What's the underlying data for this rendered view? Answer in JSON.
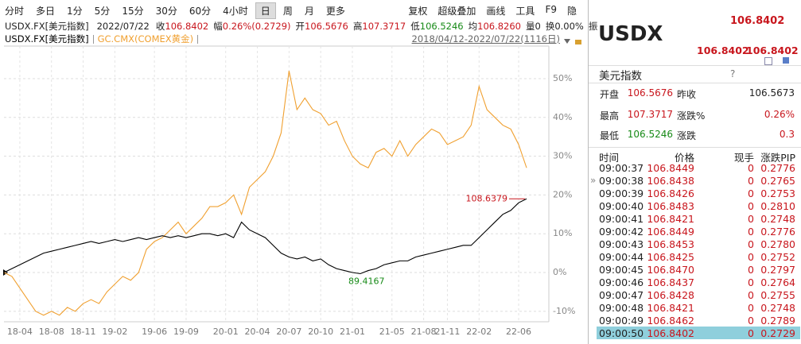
{
  "toolbar": {
    "left": [
      "分时",
      "多日",
      "1分",
      "5分",
      "15分",
      "30分",
      "60分",
      "4小时",
      "日",
      "周",
      "月",
      "更多"
    ],
    "active_index": 8,
    "right": [
      "复权",
      "超级叠加",
      "画线",
      "工具",
      "F9",
      "隐"
    ]
  },
  "quote_line": {
    "symbol": "USDX.FX[美元指数]",
    "date": "2022/07/22",
    "items": [
      {
        "label": "收",
        "value": "106.8402",
        "tone": "up"
      },
      {
        "label": "幅",
        "value": "0.26%(0.2729)",
        "tone": "up"
      },
      {
        "label": "开",
        "value": "106.5676",
        "tone": "up"
      },
      {
        "label": "高",
        "value": "107.3717",
        "tone": "up"
      },
      {
        "label": "低",
        "value": "106.5246",
        "tone": "down"
      },
      {
        "label": "均",
        "value": "106.8260",
        "tone": "up"
      },
      {
        "label": "量",
        "value": "0",
        "tone": "plain"
      },
      {
        "label": "换",
        "value": "0.00%",
        "tone": "plain"
      }
    ],
    "trailing": "振"
  },
  "chart_data": {
    "type": "line",
    "range": "2018/04/12-2022/07/22(1116日)",
    "categories": [
      null,
      null,
      "18-04",
      null,
      null,
      null,
      "18-08",
      null,
      null,
      null,
      "18-11",
      null,
      null,
      null,
      "19-02",
      null,
      null,
      null,
      null,
      "19-06",
      null,
      null,
      null,
      "19-09",
      null,
      null,
      null,
      null,
      "20-01",
      null,
      null,
      null,
      "20-04",
      null,
      null,
      null,
      "20-07",
      null,
      null,
      null,
      "20-10",
      null,
      null,
      null,
      "21-01",
      null,
      null,
      null,
      null,
      "21-05",
      null,
      null,
      null,
      "21-08",
      null,
      null,
      "21-11",
      null,
      null,
      null,
      "22-02",
      null,
      null,
      null,
      null,
      "22-06",
      null
    ],
    "series": [
      {
        "name": "USDX.FX[美元指数]",
        "color": "#000000",
        "values": [
          0,
          1,
          2,
          3,
          4,
          5,
          5.5,
          6,
          6.5,
          7,
          7.5,
          8,
          7.5,
          8,
          8.5,
          8,
          8.5,
          9,
          8.5,
          9,
          9.5,
          9,
          9.5,
          9,
          9.5,
          10,
          10,
          9.5,
          10,
          9,
          13,
          11,
          10,
          9,
          7,
          5,
          4,
          3.5,
          4,
          3,
          3.5,
          2,
          1,
          0.5,
          0,
          -0.3,
          0.5,
          1,
          2,
          2.5,
          3,
          3,
          4,
          4.5,
          5,
          5.5,
          6,
          6.5,
          7,
          7,
          9,
          11,
          13,
          15,
          16,
          18,
          19
        ]
      },
      {
        "name": "GC.CMX(COMEX黄金)",
        "color": "#f0a030",
        "values": [
          0,
          -1,
          -4,
          -7,
          -10,
          -11,
          -10,
          -11,
          -9,
          -10,
          -8,
          -7,
          -8,
          -5,
          -3,
          -1,
          -2,
          0,
          6,
          8,
          9,
          11,
          13,
          10,
          12,
          14,
          17,
          17,
          18,
          20,
          15,
          22,
          24,
          26,
          30,
          36,
          52,
          42,
          45,
          42,
          41,
          38,
          39,
          34,
          30,
          28,
          27,
          31,
          32,
          30,
          34,
          30,
          33,
          35,
          37,
          36,
          33,
          34,
          35,
          38,
          48,
          42,
          40,
          38,
          37,
          33,
          27
        ]
      }
    ],
    "ylim": [
      -12.7,
      58.4
    ],
    "yticks": [
      {
        "value": -10,
        "label": "-10%"
      },
      {
        "value": 0,
        "label": "0%"
      },
      {
        "value": 10,
        "label": "10%"
      },
      {
        "value": 20,
        "label": "20%"
      },
      {
        "value": 30,
        "label": "30%"
      },
      {
        "value": 40,
        "label": "40%"
      },
      {
        "value": 50,
        "label": "50%"
      }
    ],
    "grid": true,
    "max_label": "108.6379",
    "min_label": "89.4167"
  },
  "side_panel": {
    "code": "USDX",
    "price": "106.8402",
    "bid": "106.8402",
    "ask": "106.8402",
    "name": "美元指数",
    "help": "?",
    "stats": [
      [
        {
          "label": "开盘"
        },
        {
          "value": "106.5676",
          "tone": "up"
        },
        {
          "label": "昨收"
        },
        {
          "value": "106.5673",
          "tone": "plain"
        }
      ],
      [
        {
          "label": "最高"
        },
        {
          "value": "107.3717",
          "tone": "up"
        },
        {
          "label": "涨跌%"
        },
        {
          "value": "0.26%",
          "tone": "up"
        }
      ],
      [
        {
          "label": "最低"
        },
        {
          "value": "106.5246",
          "tone": "down"
        },
        {
          "label": "涨跌"
        },
        {
          "value": "0.3",
          "tone": "up"
        }
      ]
    ],
    "ticks": {
      "columns": [
        "时间",
        "价格",
        "现手",
        "涨跌PIP"
      ],
      "rows": [
        [
          "09:00:37",
          "106.8449",
          "0",
          "0.2776"
        ],
        [
          "09:00:38",
          "106.8438",
          "0",
          "0.2765"
        ],
        [
          "09:00:39",
          "106.8426",
          "0",
          "0.2753"
        ],
        [
          "09:00:40",
          "106.8483",
          "0",
          "0.2810"
        ],
        [
          "09:00:41",
          "106.8421",
          "0",
          "0.2748"
        ],
        [
          "09:00:42",
          "106.8449",
          "0",
          "0.2776"
        ],
        [
          "09:00:43",
          "106.8453",
          "0",
          "0.2780"
        ],
        [
          "09:00:44",
          "106.8425",
          "0",
          "0.2752"
        ],
        [
          "09:00:45",
          "106.8470",
          "0",
          "0.2797"
        ],
        [
          "09:00:46",
          "106.8437",
          "0",
          "0.2764"
        ],
        [
          "09:00:47",
          "106.8428",
          "0",
          "0.2755"
        ],
        [
          "09:00:48",
          "106.8421",
          "0",
          "0.2748"
        ],
        [
          "09:00:49",
          "106.8462",
          "0",
          "0.2789"
        ],
        [
          "09:00:50",
          "106.8402",
          "0",
          "0.2729"
        ]
      ],
      "selected_row": 13
    }
  }
}
